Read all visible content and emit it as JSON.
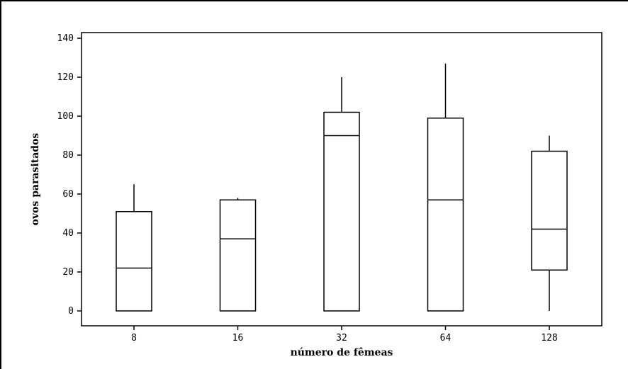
{
  "chart_data": {
    "type": "boxplot",
    "xlabel": "número de fêmeas",
    "ylabel": "ovos parasitados",
    "categories": [
      "8",
      "16",
      "32",
      "64",
      "128"
    ],
    "ylim": [
      -7,
      141
    ],
    "yticks": [
      0,
      20,
      40,
      60,
      80,
      100,
      120,
      140
    ],
    "grid": false,
    "boxes": [
      {
        "category": "8",
        "min": 0,
        "q1": 0,
        "median": 22,
        "q3": 51,
        "max": 65
      },
      {
        "category": "16",
        "min": 0,
        "q1": 0,
        "median": 37,
        "q3": 57,
        "max": 58
      },
      {
        "category": "32",
        "min": 0,
        "q1": 0,
        "median": 90,
        "q3": 102,
        "max": 120
      },
      {
        "category": "64",
        "min": 0,
        "q1": 0,
        "median": 57,
        "q3": 99,
        "max": 127
      },
      {
        "category": "128",
        "min": 0,
        "q1": 21,
        "median": 42,
        "q3": 82,
        "max": 90
      }
    ]
  }
}
